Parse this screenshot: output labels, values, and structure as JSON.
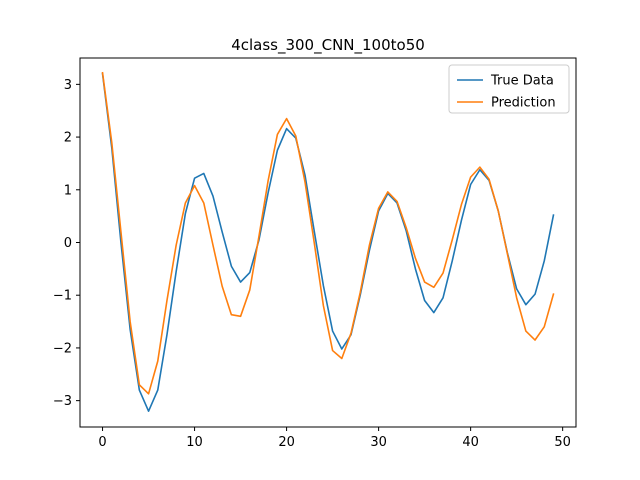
{
  "chart_data": {
    "type": "line",
    "title": "4class_300_CNN_100to50",
    "xlabel": "",
    "ylabel": "",
    "xlim": [
      -2.45,
      51.45
    ],
    "ylim": [
      -3.5,
      3.5
    ],
    "xticks": [
      0,
      10,
      20,
      30,
      40,
      50
    ],
    "yticks": [
      -3,
      -2,
      -1,
      0,
      1,
      2,
      3
    ],
    "grid": false,
    "legend_position": "top-right",
    "x": [
      0,
      1,
      2,
      3,
      4,
      5,
      6,
      7,
      8,
      9,
      10,
      11,
      12,
      13,
      14,
      15,
      16,
      17,
      18,
      19,
      20,
      21,
      22,
      23,
      24,
      25,
      26,
      27,
      28,
      29,
      30,
      31,
      32,
      33,
      34,
      35,
      36,
      37,
      38,
      39,
      40,
      41,
      42,
      43,
      44,
      45,
      46,
      47,
      48,
      49
    ],
    "series": [
      {
        "name": "True Data",
        "color": "#1f77b4",
        "values": [
          3.2,
          1.8,
          0.0,
          -1.65,
          -2.8,
          -3.2,
          -2.8,
          -1.75,
          -0.55,
          0.55,
          1.22,
          1.31,
          0.88,
          0.2,
          -0.45,
          -0.75,
          -0.57,
          0.05,
          0.95,
          1.75,
          2.16,
          1.98,
          1.28,
          0.22,
          -0.82,
          -1.68,
          -2.02,
          -1.75,
          -1.0,
          -0.15,
          0.6,
          0.93,
          0.75,
          0.22,
          -0.5,
          -1.1,
          -1.33,
          -1.05,
          -0.35,
          0.42,
          1.1,
          1.38,
          1.18,
          0.6,
          -0.2,
          -0.88,
          -1.18,
          -0.98,
          -0.35,
          0.52
        ]
      },
      {
        "name": "Prediction",
        "color": "#ff7f0e",
        "values": [
          3.22,
          1.9,
          0.2,
          -1.5,
          -2.7,
          -2.87,
          -2.25,
          -1.1,
          -0.05,
          0.75,
          1.08,
          0.75,
          -0.05,
          -0.83,
          -1.37,
          -1.4,
          -0.9,
          0.12,
          1.18,
          2.05,
          2.35,
          2.02,
          1.15,
          0.0,
          -1.2,
          -2.05,
          -2.2,
          -1.72,
          -0.95,
          -0.05,
          0.65,
          0.96,
          0.78,
          0.28,
          -0.3,
          -0.75,
          -0.85,
          -0.58,
          0.05,
          0.72,
          1.24,
          1.43,
          1.2,
          0.6,
          -0.22,
          -1.05,
          -1.68,
          -1.85,
          -1.6,
          -0.98
        ]
      }
    ]
  }
}
